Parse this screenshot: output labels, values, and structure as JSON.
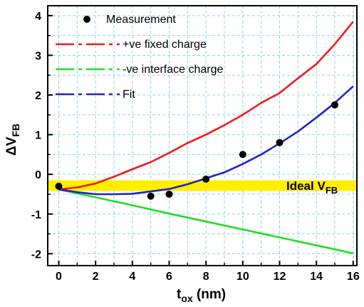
{
  "chart_data": {
    "type": "line",
    "xlabel": {
      "main": "t",
      "sub": "ox",
      "rest": " (nm)"
    },
    "ylabel": {
      "main": "ΔV",
      "sub": "FB"
    },
    "xlim": [
      -0.6,
      16.2
    ],
    "ylim": [
      -2.3,
      4.25
    ],
    "x_ticks": [
      0,
      2,
      4,
      6,
      8,
      10,
      12,
      14,
      16
    ],
    "y_ticks": [
      -2,
      -1,
      0,
      1,
      2,
      3,
      4
    ],
    "grid": true,
    "legend_position": "top-left",
    "ideal_band": {
      "label_main": "Ideal V",
      "label_sub": "FB",
      "y_low": -0.42,
      "y_high": -0.15,
      "color": "#ffee00"
    },
    "series": [
      {
        "name": "Measurement",
        "kind": "scatter",
        "color": "#000000",
        "x": [
          0,
          5,
          6,
          8,
          10,
          12,
          15
        ],
        "y": [
          -0.3,
          -0.55,
          -0.5,
          -0.12,
          0.5,
          0.8,
          1.75
        ]
      },
      {
        "name": "+ve fixed charge",
        "kind": "line",
        "color": "#ee1c1c",
        "x": [
          0,
          1,
          2,
          3,
          4,
          5,
          6,
          7,
          8,
          9,
          10,
          11,
          12,
          13,
          14,
          15,
          16
        ],
        "y": [
          -0.38,
          -0.33,
          -0.23,
          -0.06,
          0.13,
          0.31,
          0.54,
          0.79,
          1.0,
          1.24,
          1.5,
          1.8,
          2.05,
          2.42,
          2.78,
          3.28,
          3.85
        ]
      },
      {
        "name": "-ve interface charge",
        "kind": "line",
        "color": "#22dd22",
        "x": [
          0,
          2,
          4,
          6,
          8,
          10,
          12,
          14,
          16
        ],
        "y": [
          -0.38,
          -0.58,
          -0.78,
          -0.99,
          -1.19,
          -1.39,
          -1.59,
          -1.79,
          -1.99
        ]
      },
      {
        "name": "Fit",
        "kind": "line",
        "color": "#2222cc",
        "x": [
          0,
          1,
          2,
          3,
          4,
          5,
          6,
          7,
          8,
          9,
          10,
          11,
          12,
          13,
          14,
          15,
          16
        ],
        "y": [
          -0.38,
          -0.45,
          -0.5,
          -0.5,
          -0.49,
          -0.43,
          -0.37,
          -0.25,
          -0.1,
          0.05,
          0.26,
          0.5,
          0.78,
          1.08,
          1.43,
          1.8,
          2.22
        ]
      }
    ]
  }
}
